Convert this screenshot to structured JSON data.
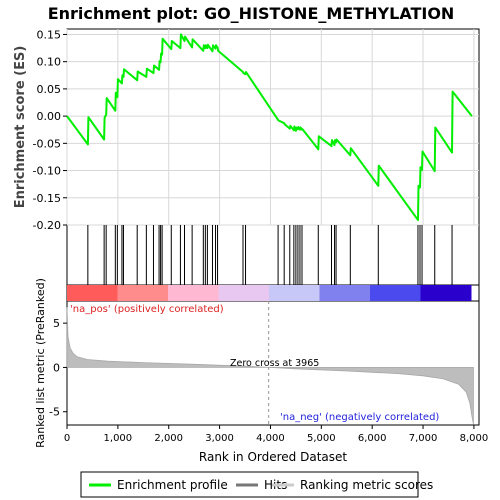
{
  "chart_data": {
    "type": "line",
    "title": "Enrichment plot: GO_HISTONE_METHYLATION",
    "top_panel": {
      "ylabel": "Enrichment score (ES)",
      "ylim": [
        -0.2,
        0.16
      ],
      "yticks": [
        "0.15",
        "0.10",
        "0.05",
        "0.00",
        "-0.05",
        "-0.10",
        "-0.15",
        "-0.20"
      ],
      "ytick_values": [
        0.15,
        0.1,
        0.05,
        0.0,
        -0.05,
        -0.1,
        -0.15,
        -0.2
      ],
      "grid": true,
      "series": [
        {
          "name": "Enrichment profile",
          "color": "#00ee00",
          "x": [
            0,
            410,
            420,
            730,
            740,
            770,
            780,
            950,
            960,
            990,
            1000,
            1080,
            1090,
            1110,
            1120,
            1380,
            1390,
            1560,
            1570,
            1700,
            1710,
            1810,
            1820,
            1840,
            1850,
            1870,
            1880,
            2050,
            2060,
            2230,
            2240,
            2310,
            2320,
            2460,
            2470,
            2680,
            2690,
            2720,
            2730,
            2760,
            2770,
            2860,
            2870,
            2920,
            2930,
            2960,
            2970,
            3460,
            3470,
            3510,
            3520,
            4150,
            4160,
            4270,
            4280,
            4380,
            4390,
            4460,
            4470,
            4500,
            4510,
            4540,
            4550,
            4580,
            4590,
            4620,
            4630,
            4940,
            4950,
            5200,
            5210,
            5260,
            5270,
            5290,
            5300,
            5570,
            5580,
            6120,
            6130,
            6900,
            6910,
            6940,
            6950,
            6980,
            6990,
            7230,
            7240,
            7570,
            7580,
            7960
          ],
          "y": [
            0.0,
            -0.052,
            -0.002,
            -0.043,
            -0.003,
            0.003,
            0.033,
            0.01,
            0.043,
            0.035,
            0.068,
            0.06,
            0.075,
            0.072,
            0.086,
            0.066,
            0.082,
            0.072,
            0.087,
            0.079,
            0.093,
            0.085,
            0.101,
            0.099,
            0.115,
            0.113,
            0.142,
            0.123,
            0.138,
            0.125,
            0.15,
            0.138,
            0.146,
            0.126,
            0.141,
            0.12,
            0.13,
            0.125,
            0.13,
            0.125,
            0.131,
            0.119,
            0.13,
            0.124,
            0.13,
            0.126,
            0.12,
            0.081,
            0.079,
            0.077,
            0.081,
            -0.007,
            -0.008,
            -0.013,
            -0.015,
            -0.023,
            -0.018,
            -0.026,
            -0.019,
            -0.027,
            -0.021,
            -0.024,
            -0.02,
            -0.025,
            -0.021,
            -0.025,
            -0.024,
            -0.061,
            -0.037,
            -0.055,
            -0.044,
            -0.053,
            -0.044,
            -0.048,
            -0.043,
            -0.072,
            -0.059,
            -0.128,
            -0.091,
            -0.191,
            -0.128,
            -0.131,
            -0.094,
            -0.099,
            -0.065,
            -0.101,
            -0.021,
            -0.067,
            0.045,
            0.0
          ]
        }
      ]
    },
    "hits_panel": {
      "hit_positions": [
        410,
        730,
        770,
        950,
        990,
        1080,
        1110,
        1380,
        1560,
        1700,
        1810,
        1840,
        1870,
        2050,
        2230,
        2310,
        2460,
        2680,
        2720,
        2760,
        2860,
        2920,
        2960,
        3460,
        3510,
        4150,
        4270,
        4380,
        4460,
        4500,
        4540,
        4580,
        4620,
        4940,
        5200,
        5260,
        5290,
        5570,
        6120,
        6900,
        6940,
        6980,
        7230,
        7570
      ],
      "gradient_colors": [
        "#ff5b5b",
        "#ff8c8c",
        "#ffb8d2",
        "#e8c8f0",
        "#c8c8f8",
        "#8080ee",
        "#4a4aee",
        "#2a00cc"
      ]
    },
    "bottom_panel": {
      "ylabel": "Ranked list metric (PreRanked)",
      "ylim": [
        -6.5,
        7.5
      ],
      "yticks": [
        "5",
        "0",
        "-5"
      ],
      "ytick_values": [
        5,
        0,
        -5
      ],
      "rank_x": [
        0,
        20,
        60,
        120,
        200,
        400,
        800,
        1500,
        2500,
        3500,
        3965,
        4500,
        5500,
        6500,
        7000,
        7400,
        7700,
        7850,
        7920,
        7960,
        7990
      ],
      "rank_y": [
        6.8,
        3.5,
        2.2,
        1.6,
        1.2,
        0.9,
        0.7,
        0.55,
        0.35,
        0.15,
        0.0,
        -0.15,
        -0.4,
        -0.7,
        -0.95,
        -1.3,
        -1.9,
        -2.8,
        -4.0,
        -5.5,
        -6.4
      ],
      "annotations": {
        "pos_label": "'na_pos' (positively correlated)",
        "neg_label": "'na_neg' (negatively correlated)",
        "zero_cross": "Zero cross at 3965"
      },
      "zero_cross_x": 3965
    },
    "xlabel": "Rank in Ordered Dataset",
    "xlim": [
      0,
      8100
    ],
    "xticks": [
      "0",
      "1,000",
      "2,000",
      "3,000",
      "4,000",
      "5,000",
      "6,000",
      "7,000",
      "8,000"
    ],
    "xtick_values": [
      0,
      1000,
      2000,
      3000,
      4000,
      5000,
      6000,
      7000,
      8000
    ],
    "legend": {
      "placement": "bottom",
      "items": [
        {
          "label": "Enrichment profile",
          "color": "#00ee00"
        },
        {
          "label": "Hits",
          "color": "#777777"
        },
        {
          "label": "Ranking metric scores",
          "color": "#cccccc"
        }
      ]
    }
  }
}
